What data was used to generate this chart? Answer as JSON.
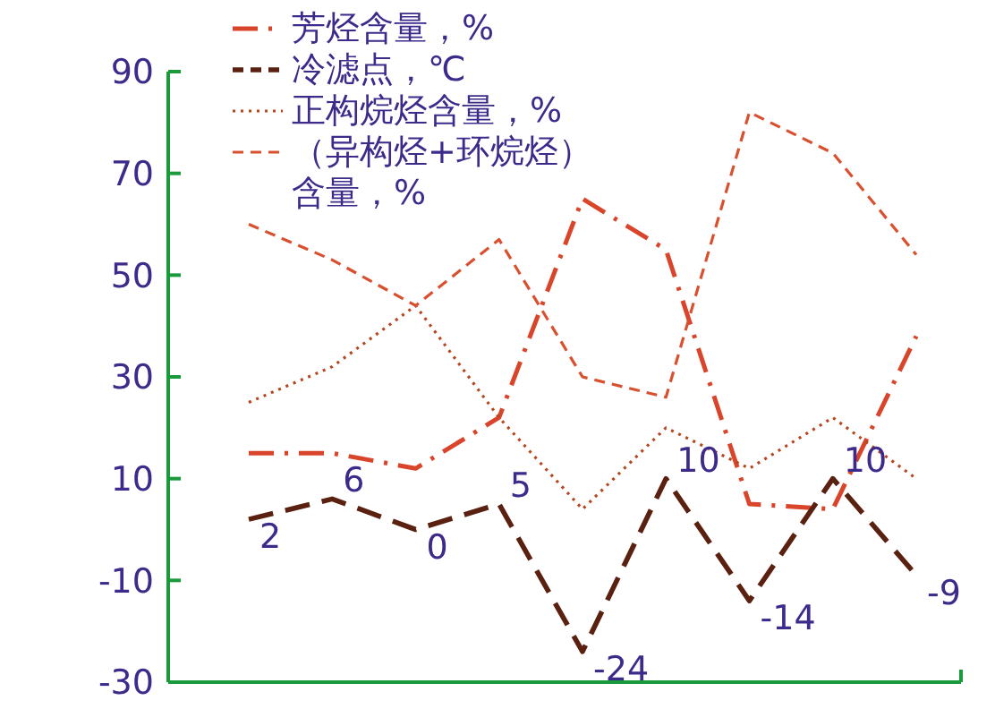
{
  "chart_data": {
    "type": "line",
    "categories": [
      null,
      null,
      null,
      null,
      null,
      null,
      null,
      null,
      null
    ],
    "ylim": [
      -30,
      90
    ],
    "yticks": [
      -30,
      -10,
      10,
      30,
      50,
      70,
      90
    ],
    "grid": false,
    "legend": "top",
    "marker": "none",
    "series": [
      {
        "name": "芳烃含量，%",
        "color": "#d9452b",
        "line_style": "dashdot",
        "values": [
          15,
          15,
          12,
          22,
          65,
          55,
          5,
          4,
          38
        ]
      },
      {
        "name": "冷滤点，℃",
        "color": "#5a2010",
        "line_style": "dashed",
        "values": [
          2,
          6,
          0,
          5,
          -24,
          10,
          -14,
          10,
          -9
        ],
        "value_labels": [
          "2",
          "6",
          "0",
          "5",
          "-24",
          "10",
          "-14",
          "10",
          "-9"
        ]
      },
      {
        "name": "正构烷烃含量，%",
        "color": "#b5471f",
        "line_style": "dotted",
        "values": [
          25,
          32,
          44,
          22,
          4,
          20,
          12,
          22,
          10
        ]
      },
      {
        "name": "（异构烃+环烷烃）含量，%",
        "color": "#d9502f",
        "line_style": "dashed",
        "values": [
          60,
          53,
          44,
          57,
          30,
          26,
          82,
          74,
          54
        ]
      }
    ]
  }
}
